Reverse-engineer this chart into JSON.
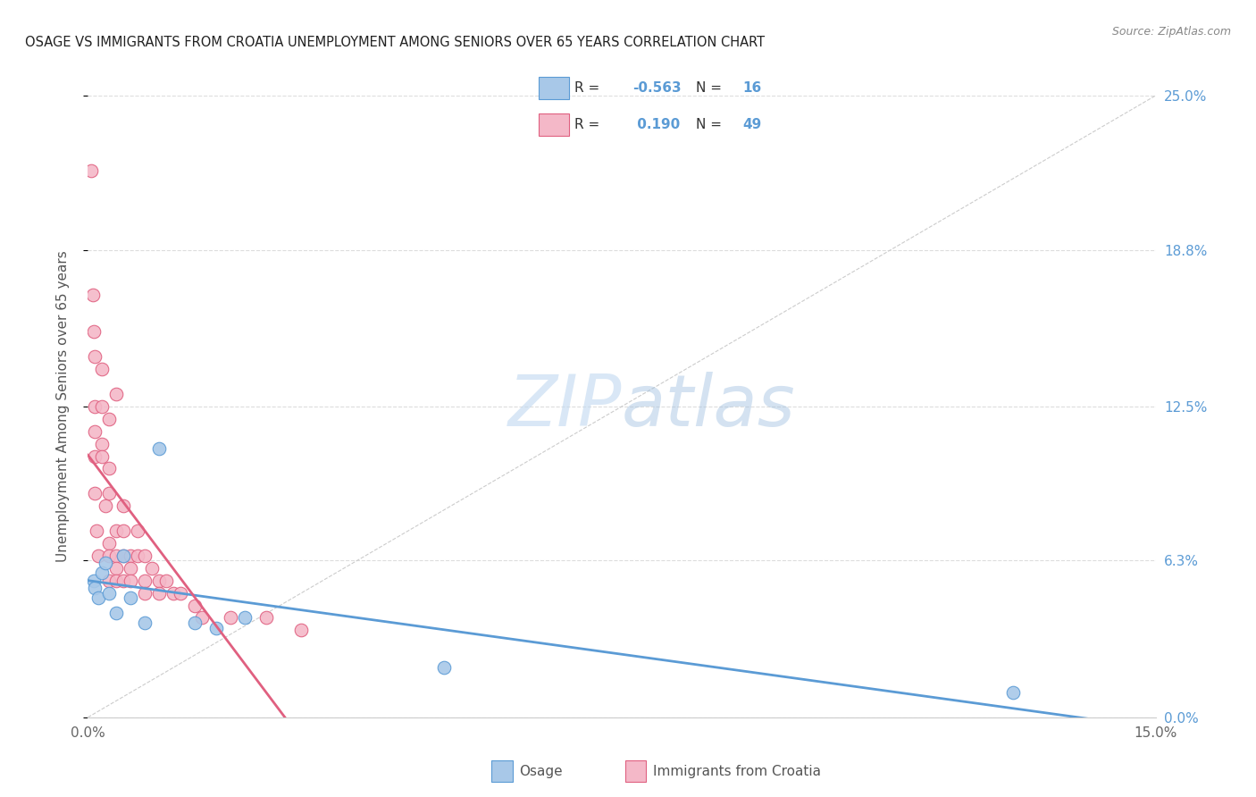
{
  "title": "OSAGE VS IMMIGRANTS FROM CROATIA UNEMPLOYMENT AMONG SENIORS OVER 65 YEARS CORRELATION CHART",
  "source": "Source: ZipAtlas.com",
  "ylabel": "Unemployment Among Seniors over 65 years",
  "watermark_zip": "ZIP",
  "watermark_atlas": "atlas",
  "R_osage": -0.563,
  "N_osage": 16,
  "R_croatia": 0.19,
  "N_croatia": 49,
  "xmin": 0.0,
  "xmax": 0.15,
  "ymin": 0.0,
  "ymax": 0.25,
  "ytick_vals": [
    0.0,
    0.063,
    0.125,
    0.188,
    0.25
  ],
  "ytick_labels": [
    "0.0%",
    "6.3%",
    "12.5%",
    "18.8%",
    "25.0%"
  ],
  "xtick_vals": [
    0.0,
    0.05,
    0.1,
    0.15
  ],
  "xtick_labels": [
    "0.0%",
    "",
    "",
    "15.0%"
  ],
  "color_osage_fill": "#a8c8e8",
  "color_croatia_fill": "#f4b8c8",
  "color_osage_edge": "#5b9bd5",
  "color_croatia_edge": "#e06080",
  "color_osage_line": "#5b9bd5",
  "color_croatia_line": "#e06080",
  "color_diag": "#cccccc",
  "color_grid": "#dddddd",
  "color_right_tick": "#5b9bd5",
  "osage_x": [
    0.0008,
    0.001,
    0.0015,
    0.002,
    0.0025,
    0.003,
    0.004,
    0.005,
    0.006,
    0.008,
    0.01,
    0.015,
    0.018,
    0.022,
    0.05,
    0.13
  ],
  "osage_y": [
    0.055,
    0.052,
    0.048,
    0.058,
    0.062,
    0.05,
    0.042,
    0.065,
    0.048,
    0.038,
    0.108,
    0.038,
    0.036,
    0.04,
    0.02,
    0.01
  ],
  "croatia_x": [
    0.0005,
    0.0007,
    0.0008,
    0.001,
    0.001,
    0.001,
    0.001,
    0.001,
    0.0012,
    0.0015,
    0.002,
    0.002,
    0.002,
    0.002,
    0.0025,
    0.003,
    0.003,
    0.003,
    0.003,
    0.003,
    0.003,
    0.004,
    0.004,
    0.004,
    0.004,
    0.004,
    0.005,
    0.005,
    0.005,
    0.005,
    0.006,
    0.006,
    0.006,
    0.007,
    0.007,
    0.008,
    0.008,
    0.008,
    0.009,
    0.01,
    0.01,
    0.011,
    0.012,
    0.013,
    0.015,
    0.016,
    0.02,
    0.025,
    0.03
  ],
  "croatia_y": [
    0.22,
    0.17,
    0.155,
    0.145,
    0.125,
    0.115,
    0.105,
    0.09,
    0.075,
    0.065,
    0.14,
    0.125,
    0.11,
    0.105,
    0.085,
    0.12,
    0.1,
    0.09,
    0.07,
    0.065,
    0.055,
    0.13,
    0.075,
    0.065,
    0.06,
    0.055,
    0.085,
    0.075,
    0.065,
    0.055,
    0.065,
    0.06,
    0.055,
    0.075,
    0.065,
    0.065,
    0.055,
    0.05,
    0.06,
    0.055,
    0.05,
    0.055,
    0.05,
    0.05,
    0.045,
    0.04,
    0.04,
    0.04,
    0.035
  ]
}
